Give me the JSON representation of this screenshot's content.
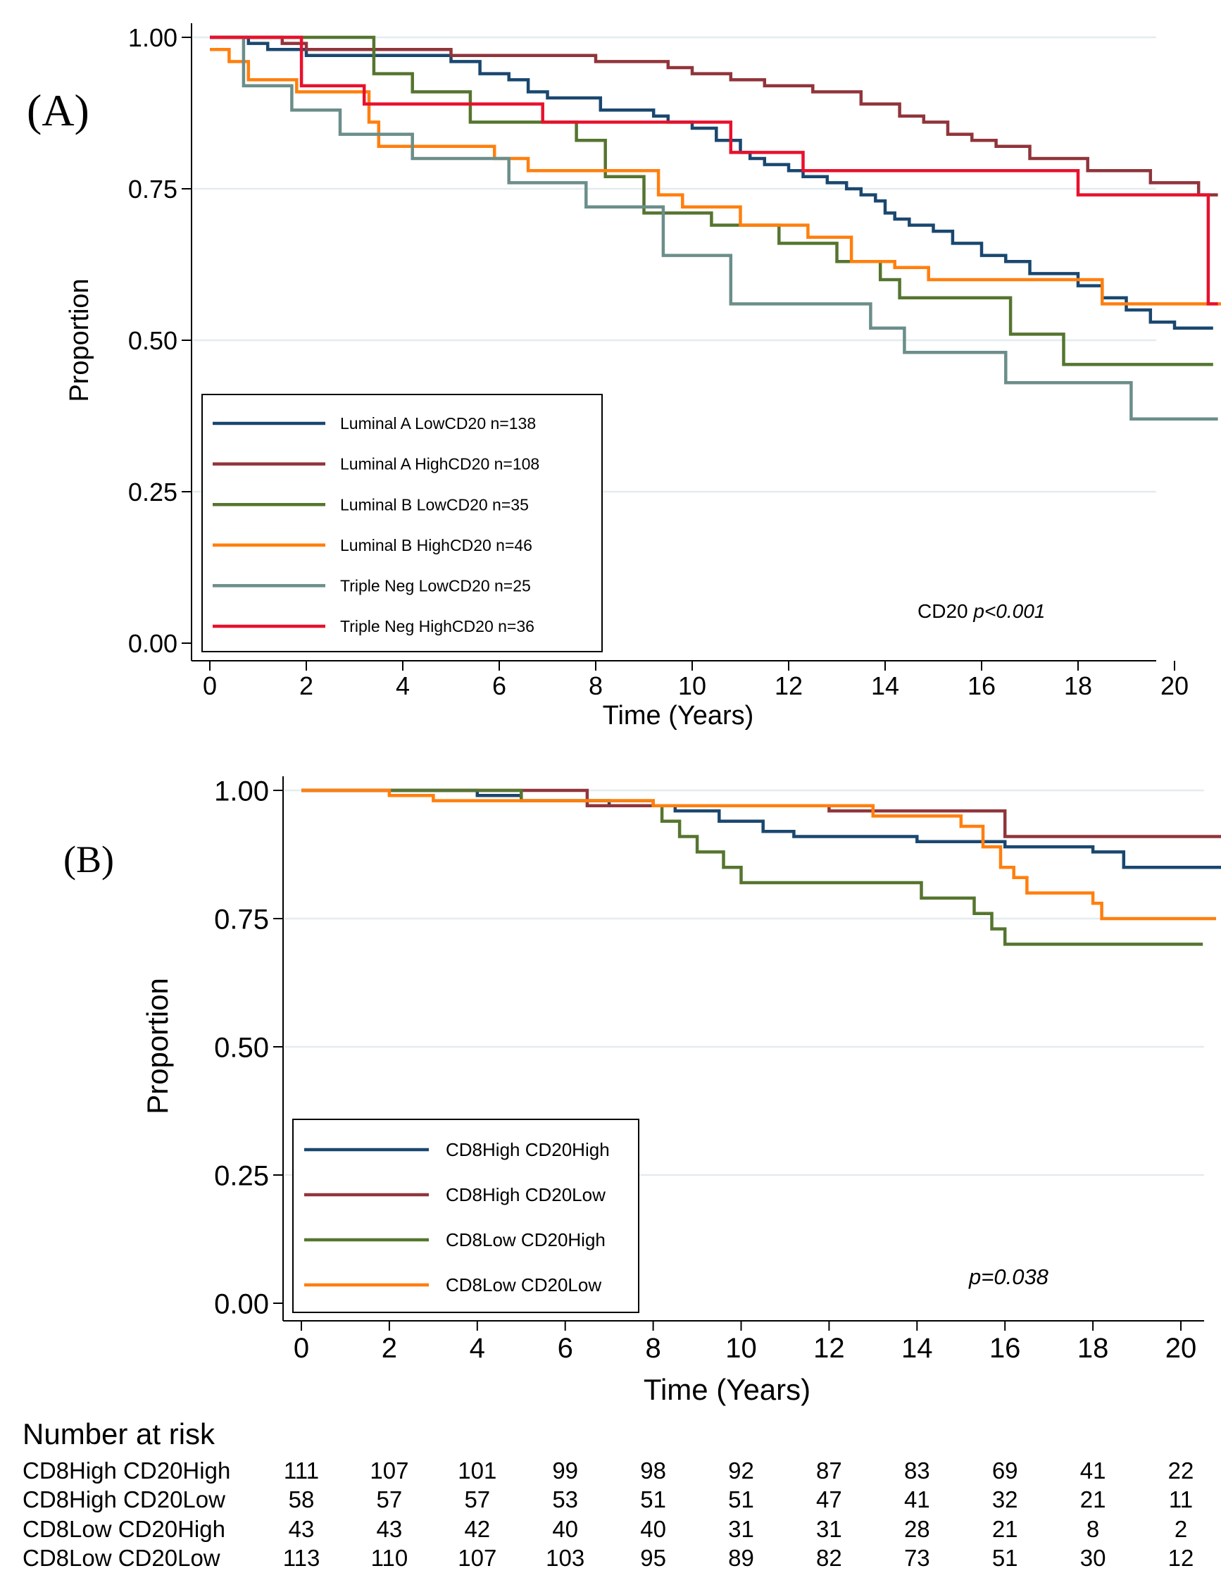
{
  "chart_data": [
    {
      "type": "line",
      "subtype": "kaplan-meier",
      "panel_label": "(A)",
      "xlabel": "Time (Years)",
      "ylabel": "Proportion",
      "xlim": [
        0,
        21.5
      ],
      "ylim": [
        0,
        1
      ],
      "x_ticks": [
        "0",
        "2",
        "4",
        "6",
        "8",
        "10",
        "12",
        "14",
        "16",
        "18",
        "20"
      ],
      "y_ticks": [
        "0.00",
        "0.25",
        "0.50",
        "0.75",
        "1.00"
      ],
      "grid": "horizontal",
      "legend_position": "bottom-left",
      "annotation": {
        "prefix": "CD20",
        "pvalue": "p<0.001"
      },
      "series": [
        {
          "name": "Luminal A LowCD20 n=138",
          "color": "#1a476f",
          "x": [
            0,
            0.8,
            1.2,
            2,
            5,
            5.6,
            6.2,
            6.6,
            7,
            8.1,
            9.2,
            9.5,
            10,
            10.5,
            11,
            11.2,
            11.5,
            12,
            12.3,
            12.8,
            13.2,
            13.5,
            13.8,
            14,
            14.2,
            14.5,
            15,
            15.4,
            16,
            16.5,
            17,
            18,
            18.5,
            19,
            19.5,
            20,
            20.8
          ],
          "y": [
            1,
            0.99,
            0.98,
            0.97,
            0.96,
            0.94,
            0.93,
            0.91,
            0.9,
            0.88,
            0.87,
            0.86,
            0.85,
            0.83,
            0.81,
            0.8,
            0.79,
            0.78,
            0.77,
            0.76,
            0.75,
            0.74,
            0.73,
            0.71,
            0.7,
            0.69,
            0.68,
            0.66,
            0.64,
            0.63,
            0.61,
            0.59,
            0.57,
            0.55,
            0.53,
            0.52,
            0.52
          ]
        },
        {
          "name": "Luminal A HighCD20 n=108",
          "color": "#90353b",
          "x": [
            0,
            1.5,
            2,
            5,
            8,
            9.5,
            10,
            10.8,
            11.5,
            12.5,
            13.5,
            14.3,
            14.8,
            15.3,
            15.8,
            16.3,
            17,
            18.2,
            19.5,
            20.5,
            20.9
          ],
          "y": [
            1,
            0.99,
            0.98,
            0.97,
            0.96,
            0.95,
            0.94,
            0.93,
            0.92,
            0.91,
            0.89,
            0.87,
            0.86,
            0.84,
            0.83,
            0.82,
            0.8,
            0.78,
            0.76,
            0.74,
            0.74
          ]
        },
        {
          "name": "Luminal B LowCD20 n=35",
          "color": "#55752f",
          "x": [
            0,
            3.4,
            4.2,
            5.4,
            7.6,
            8.2,
            9,
            10.4,
            11.8,
            13,
            13.9,
            14.3,
            16.6,
            17.7,
            20.8
          ],
          "y": [
            1,
            0.94,
            0.91,
            0.86,
            0.83,
            0.77,
            0.71,
            0.69,
            0.66,
            0.63,
            0.6,
            0.57,
            0.51,
            0.46,
            0.46
          ]
        },
        {
          "name": "Luminal B HighCD20 n=46",
          "color": "#ff7f0e",
          "x": [
            0,
            0.4,
            0.8,
            1.8,
            3.3,
            3.5,
            5.9,
            6.6,
            9.3,
            9.8,
            11,
            12.4,
            13.3,
            14.2,
            14.9,
            18.5,
            21.3
          ],
          "y": [
            0.98,
            0.96,
            0.93,
            0.91,
            0.86,
            0.82,
            0.8,
            0.78,
            0.74,
            0.72,
            0.69,
            0.67,
            0.63,
            0.62,
            0.6,
            0.56,
            0.56
          ]
        },
        {
          "name": "Triple Neg LowCD20 n=25",
          "color": "#6b8e8a",
          "x": [
            0,
            0.7,
            1.7,
            2.7,
            4.2,
            6.2,
            7.8,
            9.4,
            10.8,
            13.7,
            14.4,
            16.5,
            19.1,
            20.9
          ],
          "y": [
            1,
            0.92,
            0.88,
            0.84,
            0.8,
            0.76,
            0.72,
            0.64,
            0.56,
            0.52,
            0.48,
            0.43,
            0.37,
            0.37
          ]
        },
        {
          "name": "Triple Neg HighCD20 n=36",
          "color": "#e8112d",
          "x": [
            0,
            1.9,
            3.2,
            6.9,
            10.8,
            12.3,
            18,
            20.7,
            20.9
          ],
          "y": [
            1,
            0.92,
            0.89,
            0.86,
            0.81,
            0.78,
            0.74,
            0.56,
            0.56
          ]
        }
      ]
    },
    {
      "type": "line",
      "subtype": "kaplan-meier",
      "panel_label": "(B)",
      "xlabel": "Time (Years)",
      "ylabel": "Proportion",
      "xlim": [
        0,
        21.5
      ],
      "ylim": [
        0,
        1
      ],
      "x_ticks": [
        "0",
        "2",
        "4",
        "6",
        "8",
        "10",
        "12",
        "14",
        "16",
        "18",
        "20"
      ],
      "y_ticks": [
        "0.00",
        "0.25",
        "0.50",
        "0.75",
        "1.00"
      ],
      "grid": "horizontal",
      "legend_position": "bottom-left",
      "annotation": {
        "prefix": "",
        "pvalue": "p=0.038"
      },
      "series": [
        {
          "name": "CD8High CD20High",
          "color": "#1a476f",
          "x": [
            0,
            4,
            5,
            7,
            8.5,
            9.5,
            10.5,
            11.2,
            14,
            16,
            18,
            18.7,
            21.3
          ],
          "y": [
            1,
            0.99,
            0.98,
            0.97,
            0.96,
            0.94,
            0.92,
            0.91,
            0.9,
            0.89,
            0.88,
            0.85,
            0.85
          ]
        },
        {
          "name": "CD8High CD20Low",
          "color": "#90353b",
          "x": [
            0,
            6.5,
            8.5,
            12,
            16,
            21.3
          ],
          "y": [
            1,
            0.97,
            0.97,
            0.96,
            0.91,
            0.91
          ]
        },
        {
          "name": "CD8Low CD20High",
          "color": "#55752f",
          "x": [
            0,
            5,
            8,
            8.2,
            8.6,
            9,
            9.6,
            10,
            14.1,
            15.3,
            15.7,
            16,
            20.5
          ],
          "y": [
            1,
            0.98,
            0.97,
            0.94,
            0.91,
            0.88,
            0.85,
            0.82,
            0.79,
            0.76,
            0.73,
            0.7,
            0.7
          ]
        },
        {
          "name": "CD8Low CD20Low",
          "color": "#ff7f0e",
          "x": [
            0,
            2,
            3,
            8,
            13,
            15,
            15.5,
            15.9,
            16.2,
            16.5,
            18,
            18.2,
            20.8
          ],
          "y": [
            1,
            0.99,
            0.98,
            0.97,
            0.95,
            0.93,
            0.89,
            0.85,
            0.83,
            0.8,
            0.78,
            0.75,
            0.75
          ]
        }
      ]
    }
  ],
  "risk_table": {
    "title": "Number at risk",
    "times": [
      0,
      2,
      4,
      6,
      8,
      10,
      12,
      14,
      16,
      18,
      20
    ],
    "rows": [
      {
        "label": "CD8High CD20High",
        "values": [
          "111",
          "107",
          "101",
          "99",
          "98",
          "92",
          "87",
          "83",
          "69",
          "41",
          "22"
        ]
      },
      {
        "label": "CD8High CD20Low",
        "values": [
          "58",
          "57",
          "57",
          "53",
          "51",
          "51",
          "47",
          "41",
          "32",
          "21",
          "11"
        ]
      },
      {
        "label": "CD8Low CD20High",
        "values": [
          "43",
          "43",
          "42",
          "40",
          "40",
          "31",
          "31",
          "28",
          "21",
          "8",
          "2"
        ]
      },
      {
        "label": "CD8Low CD20Low",
        "values": [
          "113",
          "110",
          "107",
          "103",
          "95",
          "89",
          "82",
          "73",
          "51",
          "30",
          "12"
        ]
      }
    ]
  }
}
